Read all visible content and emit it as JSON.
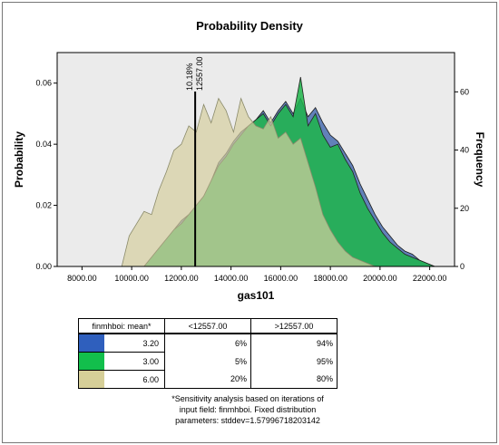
{
  "chart_data": {
    "type": "area",
    "title": "Probability Density",
    "xlabel": "gas101",
    "ylabel_left": "Probability",
    "ylabel_right": "Frequency",
    "xlim": [
      7000,
      23000
    ],
    "ylim_left": [
      0,
      0.07
    ],
    "ylim_right": [
      0,
      73.5
    ],
    "x_ticks": [
      8000,
      10000,
      12000,
      14000,
      16000,
      18000,
      20000,
      22000
    ],
    "x_tick_labels": [
      "8000.00",
      "10000.00",
      "12000.00",
      "14000.00",
      "16000.00",
      "18000.00",
      "20000.00",
      "22000.00"
    ],
    "y_left_ticks": [
      0,
      0.02,
      0.04,
      0.06
    ],
    "y_left_tick_labels": [
      "0.00",
      "0.02",
      "0.04",
      "0.06"
    ],
    "y_right_ticks": [
      0,
      20,
      40,
      60
    ],
    "y_right_tick_labels": [
      "0",
      "20",
      "40",
      "60"
    ],
    "grid": false,
    "background": "#ebebeb",
    "marker": {
      "x": 12557,
      "label_percent": "10.18%",
      "label_value": "12557.00"
    },
    "series": [
      {
        "mean": "3.20",
        "color": "#4a6fb0",
        "x": [
          10500,
          10800,
          11100,
          11400,
          11700,
          12000,
          12300,
          12600,
          12900,
          13200,
          13500,
          13800,
          14100,
          14400,
          14700,
          15000,
          15300,
          15600,
          15900,
          16200,
          16500,
          16800,
          17100,
          17400,
          17700,
          18000,
          18300,
          18600,
          18900,
          19200,
          19500,
          19800,
          20100,
          20400,
          20700,
          21000,
          21300,
          21600,
          21900,
          22200
        ],
        "y": [
          0,
          0.003,
          0.006,
          0.009,
          0.012,
          0.015,
          0.017,
          0.02,
          0.023,
          0.028,
          0.034,
          0.037,
          0.041,
          0.044,
          0.046,
          0.048,
          0.051,
          0.047,
          0.051,
          0.054,
          0.05,
          0.055,
          0.049,
          0.052,
          0.047,
          0.043,
          0.041,
          0.037,
          0.033,
          0.027,
          0.022,
          0.017,
          0.013,
          0.01,
          0.007,
          0.005,
          0.004,
          0.002,
          0.001,
          0
        ]
      },
      {
        "mean": "3.00",
        "color": "#1fb54a",
        "x": [
          10500,
          10800,
          11100,
          11400,
          11700,
          12000,
          12300,
          12600,
          12900,
          13200,
          13500,
          13800,
          14100,
          14400,
          14700,
          15000,
          15300,
          15600,
          15900,
          16200,
          16500,
          16800,
          17100,
          17400,
          17700,
          18000,
          18300,
          18600,
          18900,
          19200,
          19500,
          19800,
          20100,
          20400,
          20700,
          21000,
          21300,
          21600,
          21900,
          22200
        ],
        "y": [
          0,
          0.003,
          0.006,
          0.009,
          0.012,
          0.014,
          0.017,
          0.02,
          0.023,
          0.028,
          0.033,
          0.036,
          0.04,
          0.043,
          0.046,
          0.048,
          0.05,
          0.046,
          0.05,
          0.053,
          0.049,
          0.062,
          0.046,
          0.05,
          0.043,
          0.039,
          0.04,
          0.035,
          0.031,
          0.024,
          0.019,
          0.015,
          0.011,
          0.008,
          0.006,
          0.004,
          0.003,
          0.002,
          0.001,
          0
        ]
      },
      {
        "mean": "6.00",
        "color": "#d6cfa0",
        "x": [
          9600,
          9900,
          10200,
          10500,
          10800,
          11100,
          11400,
          11700,
          12000,
          12300,
          12600,
          12900,
          13200,
          13500,
          13800,
          14100,
          14400,
          14700,
          15000,
          15300,
          15600,
          15900,
          16200,
          16500,
          16800,
          17100,
          17400,
          17700,
          18000,
          18300,
          18600,
          18900,
          19200,
          19500,
          19800
        ],
        "y": [
          0,
          0.01,
          0.014,
          0.018,
          0.017,
          0.025,
          0.031,
          0.038,
          0.04,
          0.046,
          0.044,
          0.053,
          0.047,
          0.055,
          0.051,
          0.044,
          0.055,
          0.049,
          0.046,
          0.045,
          0.049,
          0.042,
          0.044,
          0.04,
          0.042,
          0.034,
          0.026,
          0.017,
          0.012,
          0.008,
          0.005,
          0.003,
          0.002,
          0.001,
          0
        ]
      }
    ]
  },
  "table": {
    "header_mean": "finmhboi: mean*",
    "header_lt": "<12557.00",
    "header_gt": ">12557.00",
    "rows": [
      {
        "mean": "3.20",
        "lt": "6%",
        "gt": "94%"
      },
      {
        "mean": "3.00",
        "lt": "5%",
        "gt": "95%"
      },
      {
        "mean": "6.00",
        "lt": "20%",
        "gt": "80%"
      }
    ]
  },
  "footnote": {
    "line1": "*Sensitivity analysis based on iterations of",
    "line2": "input field: finmhboi. Fixed distribution",
    "line3": "parameters: stddev=1.57996718203142"
  }
}
